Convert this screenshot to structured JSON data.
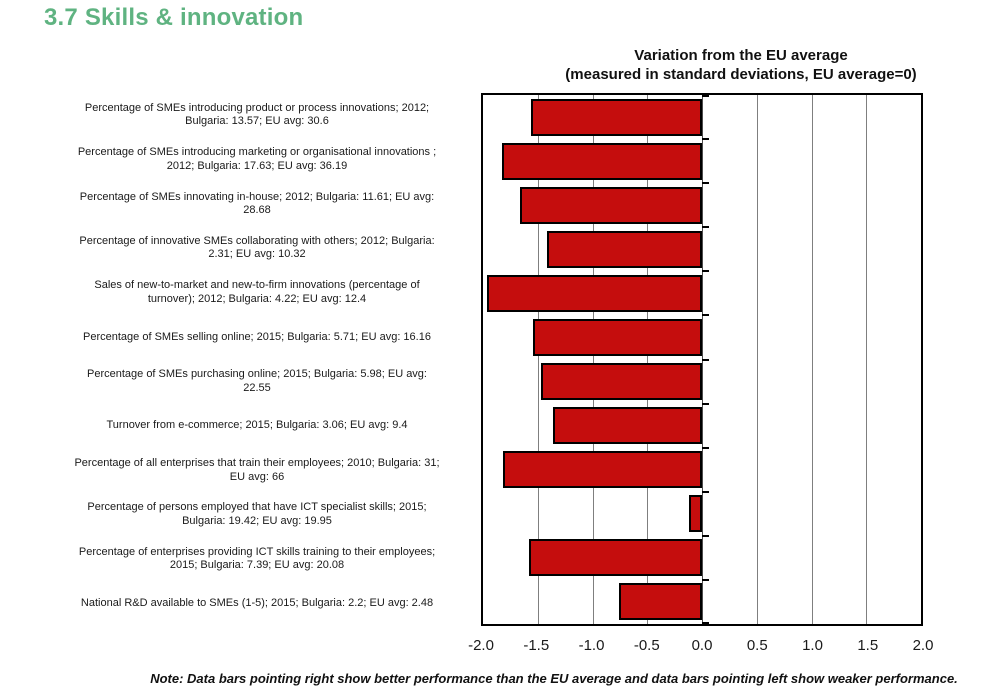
{
  "page": {
    "title": "3.7 Skills & innovation",
    "title_color": "#5FB381",
    "note": "Note: Data bars pointing right show better performance than the EU average and data bars pointing left show weaker performance."
  },
  "chart_data": {
    "type": "bar",
    "orientation": "horizontal",
    "title": "Variation from the EU average",
    "subtitle": "(measured in standard deviations, EU average=0)",
    "xlim": [
      -2.0,
      2.0
    ],
    "x_tick_labels": [
      "-2.0",
      "-1.5",
      "-1.0",
      "-0.5",
      "0.0",
      "0.5",
      "1.0",
      "1.5",
      "2.0"
    ],
    "grid": true,
    "legend": false,
    "bar_color": "#C50D0D",
    "bar_border_color": "#000000",
    "rows": [
      {
        "label": "Percentage of SMEs introducing product or process innovations; 2012;\nBulgaria: 13.57; EU avg: 30.6",
        "value": -1.56,
        "year": 2012,
        "bulgaria": 13.57,
        "eu_avg": 30.6
      },
      {
        "label": "Percentage of SMEs introducing marketing or organisational innovations ;\n2012; Bulgaria: 17.63; EU avg: 36.19",
        "value": -1.83,
        "year": 2012,
        "bulgaria": 17.63,
        "eu_avg": 36.19
      },
      {
        "label": "Percentage of SMEs innovating in-house; 2012; Bulgaria: 11.61; EU avg:\n28.68",
        "value": -1.66,
        "year": 2012,
        "bulgaria": 11.61,
        "eu_avg": 28.68
      },
      {
        "label": "Percentage of innovative SMEs collaborating with others; 2012; Bulgaria:\n2.31; EU avg: 10.32",
        "value": -1.42,
        "year": 2012,
        "bulgaria": 2.31,
        "eu_avg": 10.32
      },
      {
        "label": "Sales of new-to-market and new-to-firm innovations (percentage of\nturnover); 2012; Bulgaria: 4.22; EU avg: 12.4",
        "value": -1.96,
        "year": 2012,
        "bulgaria": 4.22,
        "eu_avg": 12.4
      },
      {
        "label": "Percentage of SMEs selling online; 2015; Bulgaria: 5.71; EU avg: 16.16",
        "value": -1.54,
        "year": 2015,
        "bulgaria": 5.71,
        "eu_avg": 16.16
      },
      {
        "label": "Percentage of SMEs purchasing online; 2015; Bulgaria: 5.98; EU avg:\n22.55",
        "value": -1.47,
        "year": 2015,
        "bulgaria": 5.98,
        "eu_avg": 22.55
      },
      {
        "label": "Turnover from e-commerce; 2015; Bulgaria: 3.06; EU avg: 9.4",
        "value": -1.36,
        "year": 2015,
        "bulgaria": 3.06,
        "eu_avg": 9.4
      },
      {
        "label": "Percentage of all enterprises that train their employees; 2010; Bulgaria: 31;\nEU avg: 66",
        "value": -1.82,
        "year": 2010,
        "bulgaria": 31,
        "eu_avg": 66
      },
      {
        "label": "Percentage of persons employed that have ICT specialist skills; 2015;\nBulgaria: 19.42; EU avg: 19.95",
        "value": -0.12,
        "year": 2015,
        "bulgaria": 19.42,
        "eu_avg": 19.95
      },
      {
        "label": "Percentage of enterprises providing ICT skills training to their employees;\n2015; Bulgaria: 7.39; EU avg: 20.08",
        "value": -1.58,
        "year": 2015,
        "bulgaria": 7.39,
        "eu_avg": 20.08
      },
      {
        "label": "National R&D available to SMEs (1-5); 2015; Bulgaria: 2.2; EU avg: 2.48",
        "value": -0.76,
        "year": 2015,
        "bulgaria": 2.2,
        "eu_avg": 2.48
      }
    ]
  }
}
